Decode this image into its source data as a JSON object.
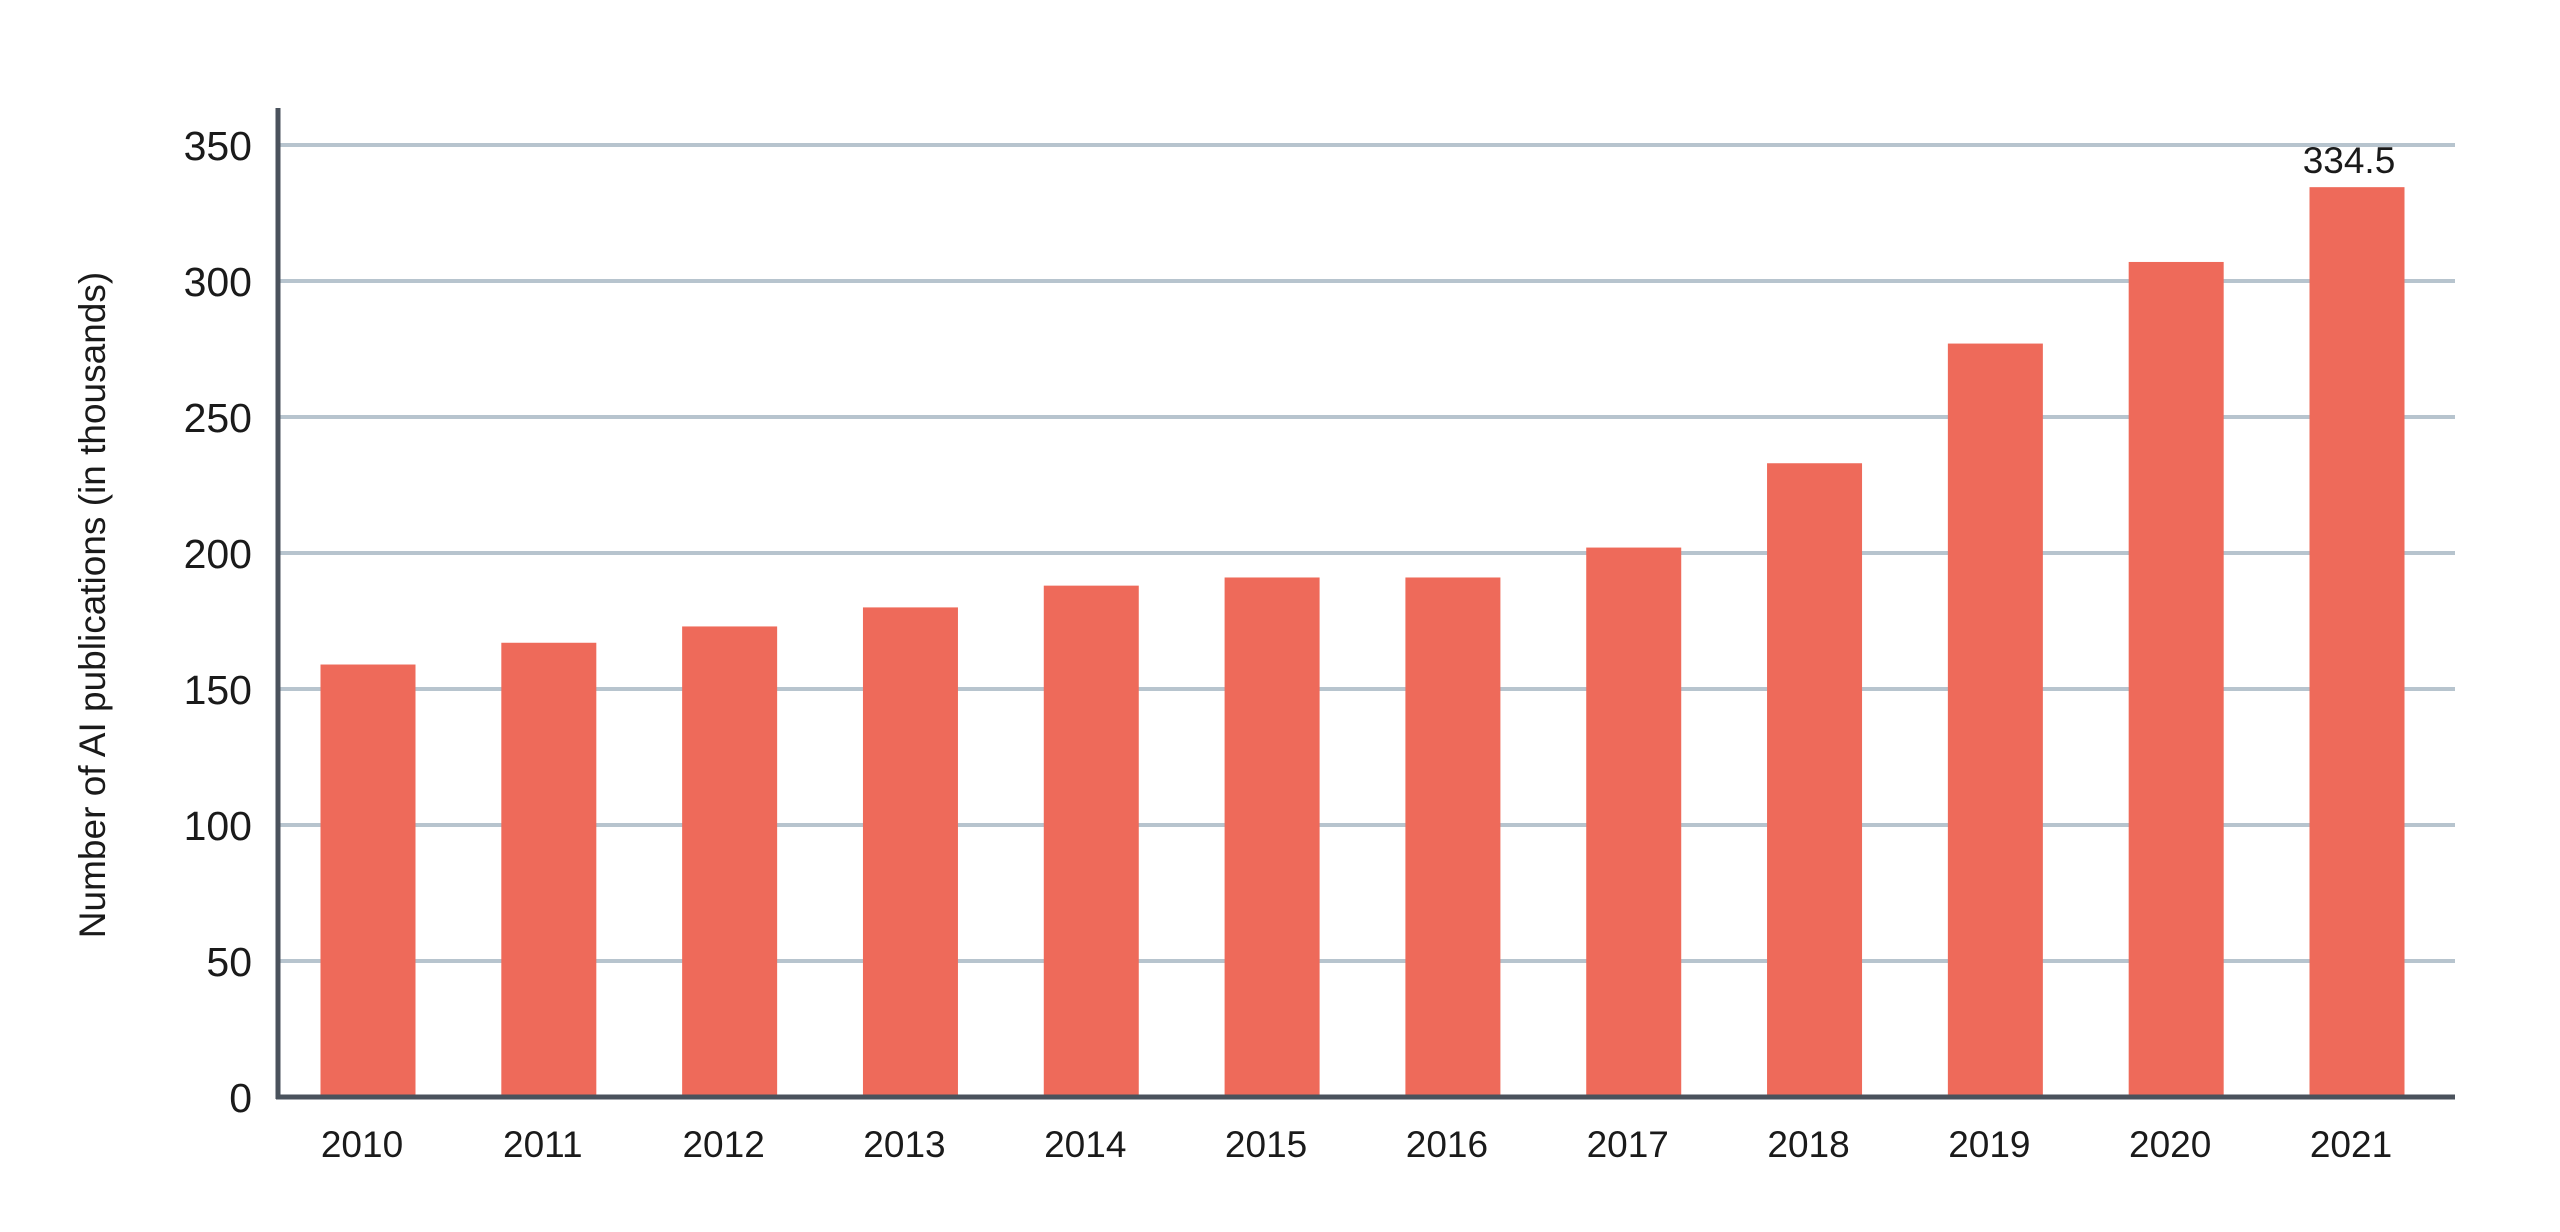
{
  "chart_data": {
    "type": "bar",
    "categories": [
      "2010",
      "2011",
      "2012",
      "2013",
      "2014",
      "2015",
      "2016",
      "2017",
      "2018",
      "2019",
      "2020",
      "2021"
    ],
    "values": [
      159,
      167,
      173,
      180,
      188,
      191,
      191,
      202,
      233,
      277,
      307,
      334.5
    ],
    "title": "",
    "xlabel": "",
    "ylabel": "Number of AI publications (in thousands)",
    "ylim": [
      0,
      350
    ],
    "yticks": [
      0,
      50,
      100,
      150,
      200,
      250,
      300,
      350
    ],
    "data_labels": [
      {
        "category": "2021",
        "text": "334.5"
      }
    ],
    "grid": true,
    "legend": "none",
    "colors": {
      "bar": "#ee6a5a",
      "grid": "#b7c4ce",
      "axis": "#4a525c",
      "text": "#1a1a1a"
    }
  }
}
